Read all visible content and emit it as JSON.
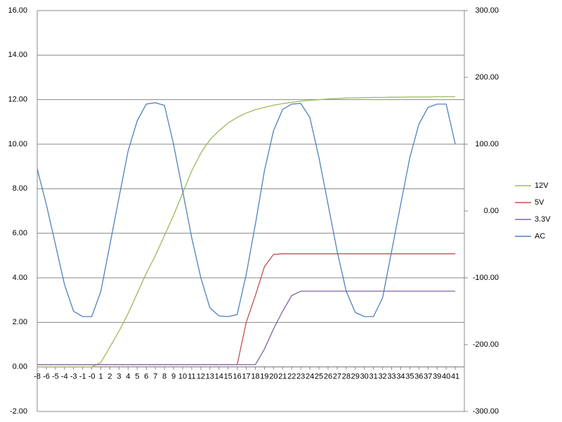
{
  "chart_data": {
    "type": "line",
    "categories": [
      "-8",
      "-6",
      "-5",
      "-4",
      "-3",
      "-1",
      "-0",
      "1",
      "2",
      "3",
      "4",
      "5",
      "6",
      "7",
      "8",
      "9",
      "10",
      "11",
      "12",
      "13",
      "14",
      "15",
      "16",
      "17",
      "18",
      "19",
      "20",
      "21",
      "22",
      "23",
      "24",
      "25",
      "26",
      "27",
      "28",
      "29",
      "30",
      "31",
      "32",
      "33",
      "34",
      "35",
      "36",
      "37",
      "39",
      "40",
      "41"
    ],
    "series": [
      {
        "name": "12V",
        "color": "#9bbb59",
        "values": [
          0,
          0,
          0,
          0,
          0,
          0,
          0,
          0.2,
          0.9,
          1.6,
          2.4,
          3.3,
          4.2,
          5.0,
          5.9,
          6.8,
          7.8,
          8.8,
          9.6,
          10.2,
          10.6,
          10.95,
          11.2,
          11.4,
          11.55,
          11.65,
          11.75,
          11.82,
          11.88,
          11.93,
          11.97,
          12.0,
          12.03,
          12.05,
          12.07,
          12.08,
          12.09,
          12.1,
          12.1,
          12.11,
          12.11,
          12.12,
          12.12,
          12.12,
          12.13,
          12.13,
          12.13
        ]
      },
      {
        "name": "5V",
        "color": "#c0504d",
        "values": [
          0.1,
          0.1,
          0.1,
          0.1,
          0.1,
          0.1,
          0.1,
          0.1,
          0.1,
          0.1,
          0.1,
          0.1,
          0.1,
          0.1,
          0.1,
          0.1,
          0.1,
          0.1,
          0.1,
          0.1,
          0.1,
          0.1,
          0.1,
          2.0,
          3.2,
          4.5,
          5.05,
          5.08,
          5.08,
          5.08,
          5.08,
          5.08,
          5.08,
          5.08,
          5.08,
          5.08,
          5.08,
          5.08,
          5.08,
          5.08,
          5.08,
          5.08,
          5.08,
          5.08,
          5.08,
          5.08,
          5.08
        ]
      },
      {
        "name": "3.3V",
        "color": "#8064a2",
        "values": [
          0.1,
          0.1,
          0.1,
          0.1,
          0.1,
          0.1,
          0.1,
          0.1,
          0.1,
          0.1,
          0.1,
          0.1,
          0.1,
          0.1,
          0.1,
          0.1,
          0.1,
          0.1,
          0.1,
          0.1,
          0.1,
          0.1,
          0.1,
          0.1,
          0.1,
          0.8,
          1.7,
          2.5,
          3.2,
          3.4,
          3.4,
          3.4,
          3.4,
          3.4,
          3.4,
          3.4,
          3.4,
          3.4,
          3.4,
          3.4,
          3.4,
          3.4,
          3.4,
          3.4,
          3.4,
          3.4,
          3.4
        ]
      },
      {
        "name": "AC",
        "color": "#4f81bd",
        "axis": "y2",
        "values": [
          63,
          10,
          -50,
          -110,
          -150,
          -158,
          -158,
          -120,
          -50,
          20,
          90,
          135,
          160,
          162,
          158,
          100,
          30,
          -40,
          -100,
          -145,
          -157,
          -158,
          -155,
          -95,
          -20,
          60,
          120,
          152,
          160,
          161,
          140,
          80,
          10,
          -60,
          -120,
          -152,
          -158,
          -158,
          -130,
          -60,
          10,
          80,
          130,
          155,
          160,
          160,
          100
        ]
      }
    ],
    "ylim": [
      -2,
      16
    ],
    "yticks": [
      {
        "value": -2,
        "label": "-2.00"
      },
      {
        "value": 0,
        "label": "0.00"
      },
      {
        "value": 2,
        "label": "2.00"
      },
      {
        "value": 4,
        "label": "4.00"
      },
      {
        "value": 6,
        "label": "6.00"
      },
      {
        "value": 8,
        "label": "8.00"
      },
      {
        "value": 10,
        "label": "10.00"
      },
      {
        "value": 12,
        "label": "12.00"
      },
      {
        "value": 14,
        "label": "14.00"
      },
      {
        "value": 16,
        "label": "16.00"
      }
    ],
    "y2lim": [
      -300,
      300
    ],
    "y2ticks": [
      {
        "value": -300,
        "label": "-300.00"
      },
      {
        "value": -200,
        "label": "-200.00"
      },
      {
        "value": -100,
        "label": "-100.00"
      },
      {
        "value": 0,
        "label": "0.00"
      },
      {
        "value": 100,
        "label": "100.00"
      },
      {
        "value": 200,
        "label": "200.00"
      },
      {
        "value": 300,
        "label": "300.00"
      }
    ],
    "grid": true,
    "legend": "right"
  }
}
